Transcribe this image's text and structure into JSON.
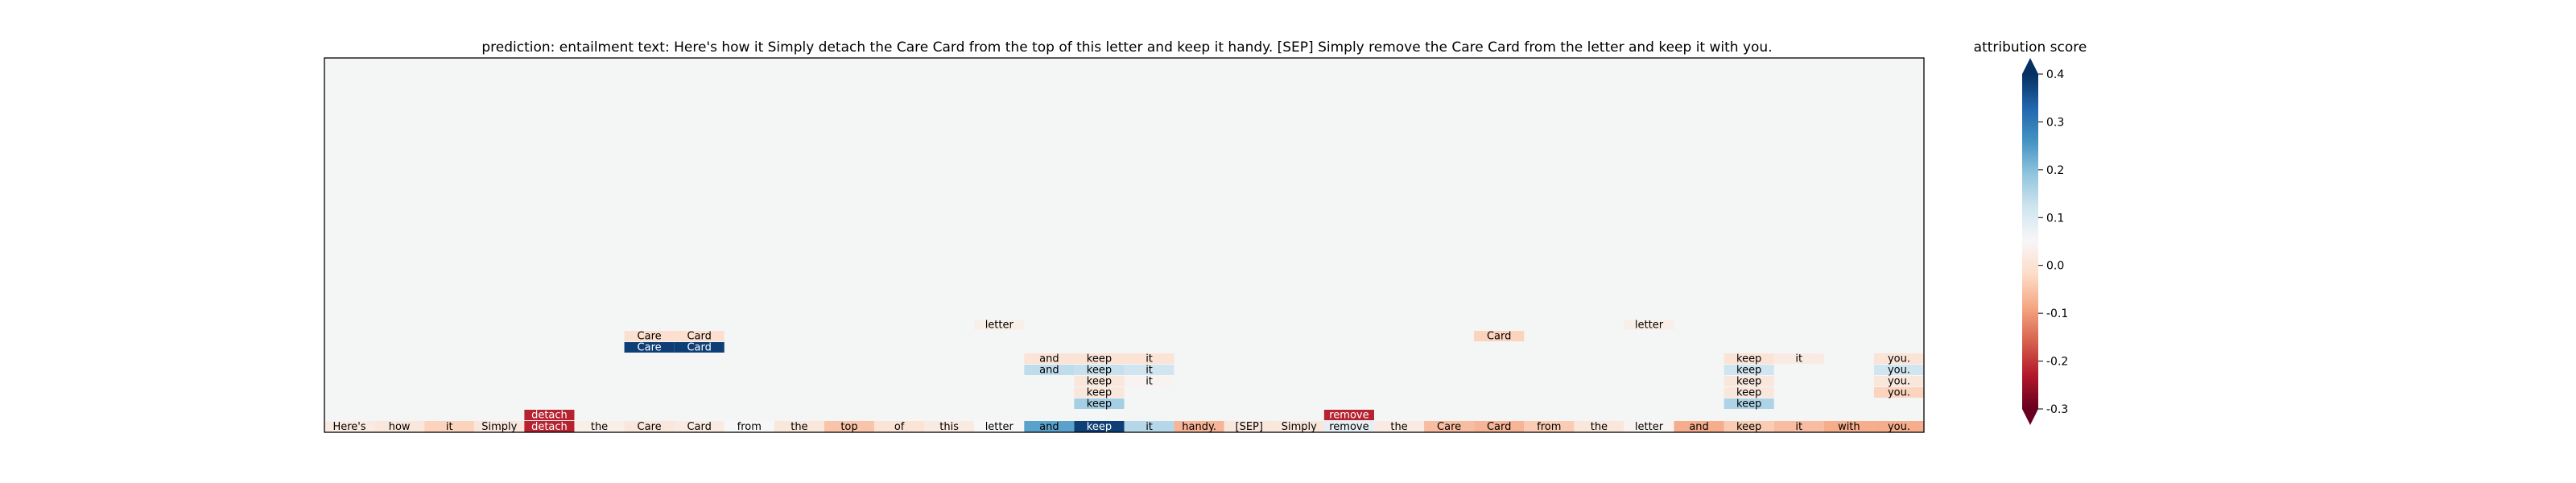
{
  "chart_data": {
    "type": "heatmap",
    "title": "prediction:  entailment     text:  Here's how it Simply detach the Care Card from the top of this letter and keep it handy. [SEP] Simply remove the Care Card from the letter and keep it with you.",
    "tokens": [
      "Here's",
      "how",
      "it",
      "Simply",
      "detach",
      "the",
      "Care",
      "Card",
      "from",
      "the",
      "top",
      "of",
      "this",
      "letter",
      "and",
      "keep",
      "it",
      "handy.",
      "[SEP]",
      "Simply",
      "remove",
      "the",
      "Care",
      "Card",
      "from",
      "the",
      "letter",
      "and",
      "keep",
      "it",
      "with",
      "you."
    ],
    "attribution": [
      0.02,
      0.01,
      -0.03,
      0.01,
      -0.22,
      0.03,
      0.01,
      0.02,
      0.05,
      0.01,
      -0.05,
      0.0,
      0.02,
      0.05,
      0.24,
      0.38,
      0.15,
      -0.07,
      0.01,
      0.01,
      0.08,
      0.02,
      -0.06,
      -0.07,
      -0.04,
      0.01,
      0.04,
      -0.08,
      -0.04,
      -0.06,
      -0.08,
      -0.08
    ],
    "upper_rows": [
      {
        "level": 1,
        "col": 4,
        "label": "detach",
        "value": -0.22
      },
      {
        "level": 1,
        "col": 20,
        "label": "remove",
        "value": -0.22
      },
      {
        "level": 2,
        "col": 15,
        "label": "keep",
        "value": 0.17
      },
      {
        "level": 2,
        "col": 28,
        "label": "keep",
        "value": 0.16
      },
      {
        "level": 3,
        "col": 15,
        "label": "keep",
        "value": 0.01
      },
      {
        "level": 3,
        "col": 28,
        "label": "keep",
        "value": 0.01
      },
      {
        "level": 3,
        "col": 31,
        "label": "you.",
        "value": -0.03
      },
      {
        "level": 4,
        "col": 15,
        "label": "keep",
        "value": 0.01
      },
      {
        "level": 4,
        "col": 16,
        "label": "it",
        "value": 0.04
      },
      {
        "level": 4,
        "col": 28,
        "label": "keep",
        "value": 0.01
      },
      {
        "level": 4,
        "col": 31,
        "label": "you.",
        "value": 0.01
      },
      {
        "level": 5,
        "col": 14,
        "label": "and",
        "value": 0.14
      },
      {
        "level": 5,
        "col": 15,
        "label": "keep",
        "value": 0.13
      },
      {
        "level": 5,
        "col": 16,
        "label": "it",
        "value": 0.12
      },
      {
        "level": 5,
        "col": 28,
        "label": "keep",
        "value": 0.12
      },
      {
        "level": 5,
        "col": 31,
        "label": "you.",
        "value": 0.12
      },
      {
        "level": 6,
        "col": 14,
        "label": "and",
        "value": 0.0
      },
      {
        "level": 6,
        "col": 15,
        "label": "keep",
        "value": 0.0
      },
      {
        "level": 6,
        "col": 16,
        "label": "it",
        "value": 0.0
      },
      {
        "level": 6,
        "col": 28,
        "label": "keep",
        "value": 0.0
      },
      {
        "level": 6,
        "col": 29,
        "label": "it",
        "value": 0.02
      },
      {
        "level": 6,
        "col": 31,
        "label": "you.",
        "value": 0.0
      },
      {
        "level": 7,
        "col": 6,
        "label": "Care",
        "value": 0.38
      },
      {
        "level": 7,
        "col": 7,
        "label": "Card",
        "value": 0.38
      },
      {
        "level": 8,
        "col": 6,
        "label": "Care",
        "value": -0.01
      },
      {
        "level": 8,
        "col": 7,
        "label": "Card",
        "value": -0.01
      },
      {
        "level": 8,
        "col": 23,
        "label": "Card",
        "value": -0.03
      },
      {
        "level": 9,
        "col": 13,
        "label": "letter",
        "value": 0.03
      },
      {
        "level": 9,
        "col": 26,
        "label": "letter",
        "value": 0.03
      }
    ],
    "colorbar": {
      "label": "attribution score",
      "range": [
        -0.3,
        0.4
      ],
      "ticks": [
        "-0.3",
        "-0.2",
        "-0.1",
        "0.0",
        "0.1",
        "0.2",
        "0.3",
        "0.4"
      ],
      "tick_values": [
        -0.3,
        -0.2,
        -0.1,
        0.0,
        0.1,
        0.2,
        0.3,
        0.4
      ],
      "colormap": "RdBu"
    },
    "grid": false
  }
}
